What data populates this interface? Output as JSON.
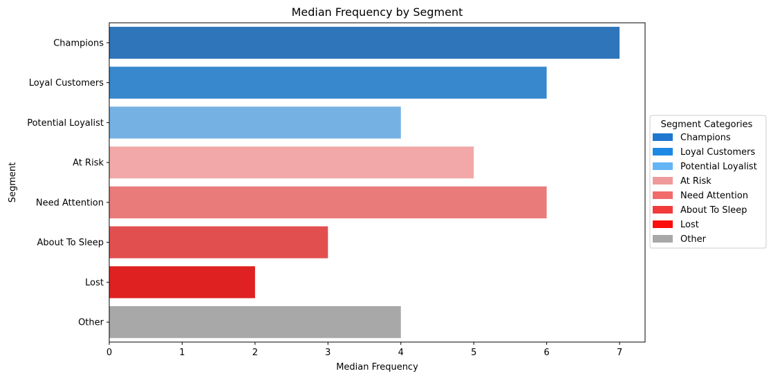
{
  "chart_data": {
    "type": "bar",
    "orientation": "horizontal",
    "title": "Median Frequency by Segment",
    "xlabel": "Median Frequency",
    "ylabel": "Segment",
    "xlim": [
      0,
      7.35
    ],
    "xticks": [
      "0",
      "1",
      "2",
      "3",
      "4",
      "5",
      "6",
      "7"
    ],
    "grid": false,
    "categories": [
      "Champions",
      "Loyal Customers",
      "Potential Loyalist",
      "At Risk",
      "Need Attention",
      "About To Sleep",
      "Lost",
      "Other"
    ],
    "values": [
      7,
      6,
      4,
      5,
      6,
      3,
      2,
      4
    ],
    "bar_colors": [
      "#2f75ba",
      "#3788cd",
      "#76b1e3",
      "#f2a8a8",
      "#e97b7a",
      "#e24f4f",
      "#df2121",
      "#a8a8a8"
    ],
    "legend": {
      "title": "Segment Categories",
      "placement": "center-right outside",
      "entries": [
        {
          "label": "Champions",
          "color": "#1f77d0"
        },
        {
          "label": "Loyal Customers",
          "color": "#1e88e5"
        },
        {
          "label": "Potential Loyalist",
          "color": "#64b5f6"
        },
        {
          "label": "At Risk",
          "color": "#ef9a9a"
        },
        {
          "label": "Need Attention",
          "color": "#f26b6b"
        },
        {
          "label": "About To Sleep",
          "color": "#f23b3b"
        },
        {
          "label": "Lost",
          "color": "#fc0d0d"
        },
        {
          "label": "Other",
          "color": "#a8a8a8"
        }
      ]
    }
  }
}
